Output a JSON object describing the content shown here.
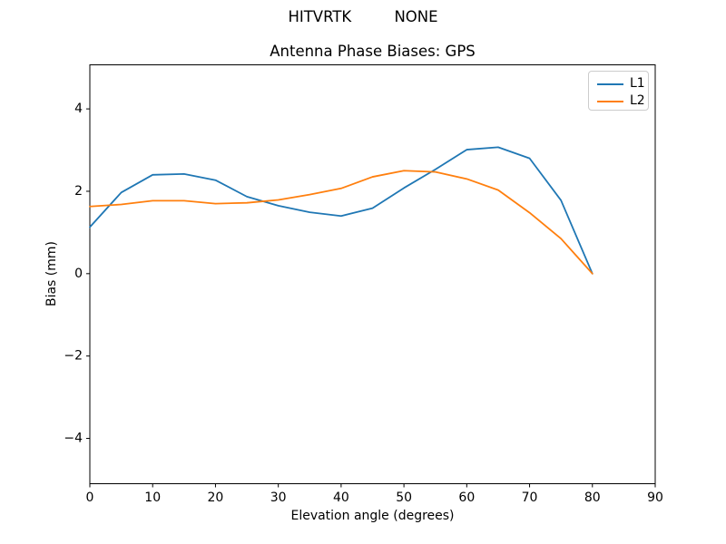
{
  "header": {
    "suptitle": "HITVRTK         NONE"
  },
  "chart_data": {
    "type": "line",
    "title": "Antenna Phase Biases: GPS",
    "xlabel": "Elevation angle (degrees)",
    "ylabel": "Bias (mm)",
    "xlim": [
      0,
      90
    ],
    "ylim": [
      -5.1,
      5.07
    ],
    "xticks": [
      0,
      10,
      20,
      30,
      40,
      50,
      60,
      70,
      80,
      90
    ],
    "yticks": [
      -4,
      -2,
      0,
      2,
      4
    ],
    "grid": false,
    "legend_position": "upper right",
    "x": [
      0,
      5,
      10,
      15,
      20,
      25,
      30,
      35,
      40,
      45,
      50,
      55,
      60,
      65,
      70,
      75,
      80
    ],
    "series": [
      {
        "name": "L1",
        "color": "#1f77b4",
        "values": [
          1.13,
          1.97,
          2.4,
          2.42,
          2.27,
          1.87,
          1.65,
          1.49,
          1.4,
          1.59,
          2.08,
          2.53,
          3.01,
          3.07,
          2.8,
          1.78,
          0.0
        ]
      },
      {
        "name": "L2",
        "color": "#ff7f0e",
        "values": [
          1.63,
          1.68,
          1.77,
          1.77,
          1.7,
          1.72,
          1.79,
          1.92,
          2.07,
          2.35,
          2.5,
          2.47,
          2.3,
          2.03,
          1.48,
          0.85,
          0.0
        ]
      }
    ]
  }
}
